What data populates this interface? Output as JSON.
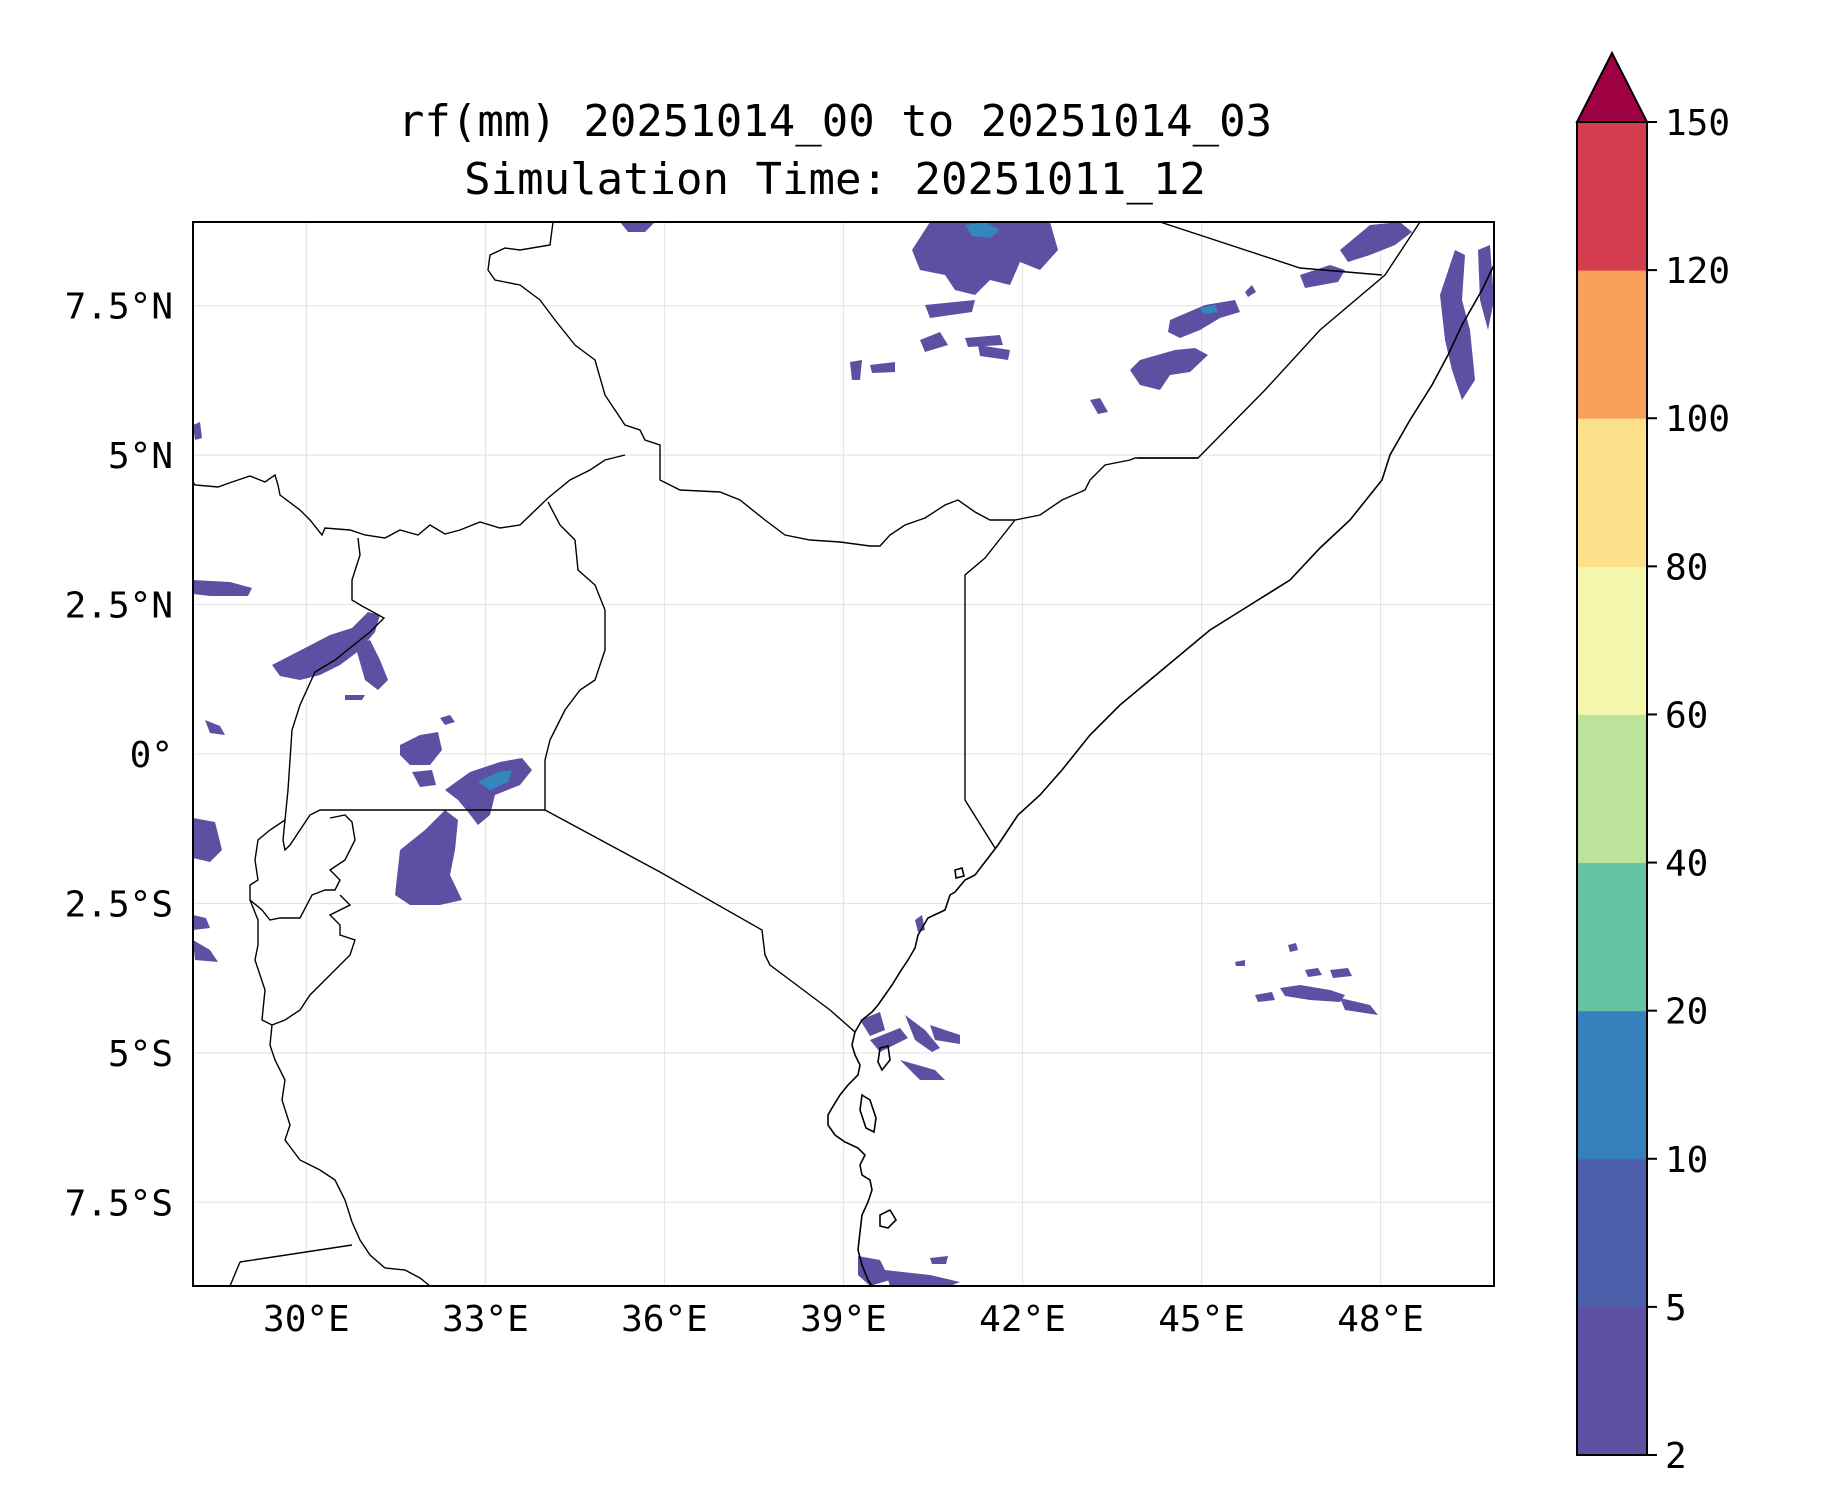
{
  "title": {
    "line1": "rf(mm) 20251014_00 to 20251014_03",
    "line2": "Simulation Time: 20251011_12"
  },
  "map": {
    "lon_range": [
      28.1,
      49.9
    ],
    "lat_range": [
      -8.9,
      8.9
    ],
    "lon_ticks": [
      {
        "value": 30,
        "label": "30°E"
      },
      {
        "value": 33,
        "label": "33°E"
      },
      {
        "value": 36,
        "label": "36°E"
      },
      {
        "value": 39,
        "label": "39°E"
      },
      {
        "value": 42,
        "label": "42°E"
      },
      {
        "value": 45,
        "label": "45°E"
      },
      {
        "value": 48,
        "label": "48°E"
      }
    ],
    "lat_ticks": [
      {
        "value": 7.5,
        "label": "7.5°N"
      },
      {
        "value": 5,
        "label": "5°N"
      },
      {
        "value": 2.5,
        "label": "2.5°N"
      },
      {
        "value": 0,
        "label": "0°"
      },
      {
        "value": -2.5,
        "label": "2.5°S"
      },
      {
        "value": -5,
        "label": "5°S"
      },
      {
        "value": -7.5,
        "label": "7.5°S"
      }
    ],
    "rain_color": "#5e4fa2",
    "rain_color_heavy": "#3288bd"
  },
  "colorbar": {
    "levels": [
      "2",
      "5",
      "10",
      "20",
      "40",
      "60",
      "80",
      "100",
      "120",
      "150"
    ],
    "colors": [
      "#5e4fa2",
      "#4e60ac",
      "#3880bb",
      "#66c2a5",
      "#bce39c",
      "#f2f7ab",
      "#fce08b",
      "#f9a15a",
      "#d53e4f"
    ],
    "extend_color": "#9e0142"
  }
}
